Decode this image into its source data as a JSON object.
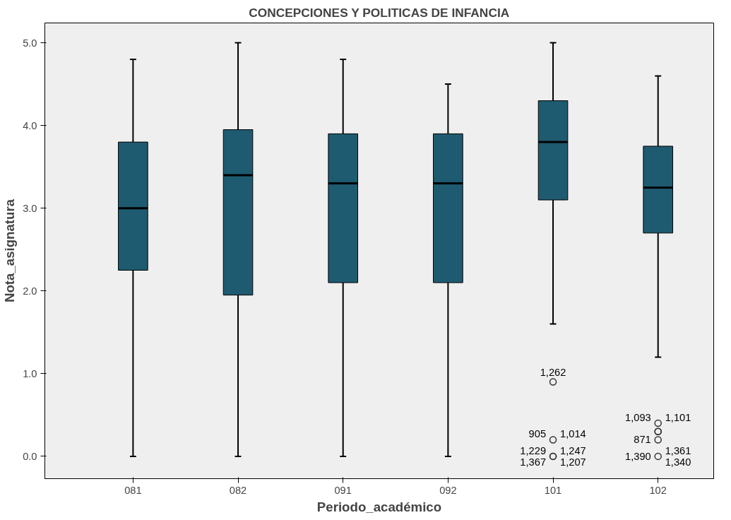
{
  "chart_data": {
    "type": "box",
    "title": "CONCEPCIONES Y POLITICAS DE INFANCIA",
    "xlabel": "Periodo_académico",
    "ylabel": "Nota_asignatura",
    "categories": [
      "081",
      "082",
      "091",
      "092",
      "101",
      "102"
    ],
    "color": "#1e5b70",
    "boxes": [
      {
        "low": 0,
        "q1": 2.25,
        "median": 3.0,
        "q3": 3.8,
        "high": 4.8
      },
      {
        "low": 0,
        "q1": 1.95,
        "median": 3.4,
        "q3": 3.95,
        "high": 5.0
      },
      {
        "low": 0,
        "q1": 2.1,
        "median": 3.3,
        "q3": 3.9,
        "high": 4.8
      },
      {
        "low": 0,
        "q1": 2.1,
        "median": 3.3,
        "q3": 3.9,
        "high": 4.5
      },
      {
        "low": 1.6,
        "q1": 3.1,
        "median": 3.8,
        "q3": 4.3,
        "high": 5.0,
        "outliers": [
          0.9,
          0.2,
          0,
          0
        ]
      },
      {
        "low": 1.2,
        "q1": 2.7,
        "median": 3.25,
        "q3": 3.75,
        "high": 4.6,
        "outliers": [
          0.4,
          0.3,
          0.3,
          0.2,
          0
        ]
      }
    ],
    "ylim": [
      -0.27,
      5.24
    ],
    "yticks": [
      {
        "value": 0,
        "label": "0.0"
      },
      {
        "value": 1,
        "label": "1.0"
      },
      {
        "value": 2,
        "label": "2.0"
      },
      {
        "value": 3,
        "label": "3.0"
      },
      {
        "value": 4,
        "label": "4.0"
      },
      {
        "value": 5,
        "label": "5.0"
      }
    ],
    "grid": false,
    "annotations": [
      "1,262",
      "905",
      "1,014",
      "1,229",
      "1,247",
      "1,367",
      "1,207",
      "1,093",
      "1,101",
      "871",
      "1,390",
      "1,361",
      "1,340"
    ]
  }
}
